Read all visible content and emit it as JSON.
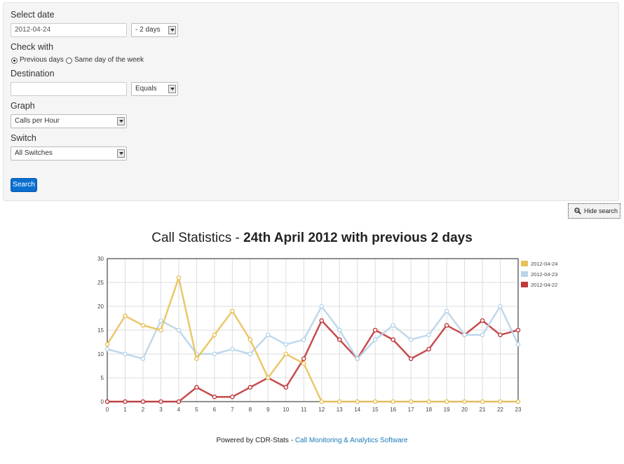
{
  "form": {
    "select_date_label": "Select date",
    "date_value": "2012-04-24",
    "days_option": "- 2 days",
    "check_with_label": "Check with",
    "radio_previous": "Previous days",
    "radio_same_day": "Same day of the week",
    "destination_label": "Destination",
    "destination_value": "",
    "equals_option": "Equals",
    "graph_label": "Graph",
    "graph_option": "Calls per Hour",
    "switch_label": "Switch",
    "switch_option": "All Switches",
    "search_button": "Search"
  },
  "hide_search": "Hide search",
  "title": {
    "prefix": "Call Statistics - ",
    "bold": "24th April 2012 with previous 2 days"
  },
  "footer": {
    "text": "Powered by CDR-Stats - ",
    "link": "Call Monitoring & Analytics Software"
  },
  "chart_data": {
    "type": "line",
    "x": [
      0,
      1,
      2,
      3,
      4,
      5,
      6,
      7,
      8,
      9,
      10,
      11,
      12,
      13,
      14,
      15,
      16,
      17,
      18,
      19,
      20,
      21,
      22,
      23
    ],
    "ylim": [
      0,
      30
    ],
    "yticks": [
      0,
      5,
      10,
      15,
      20,
      25,
      30
    ],
    "grid": true,
    "legend_position": "top-right",
    "series": [
      {
        "name": "2012-04-24",
        "color": "#e8c15a",
        "values": [
          12,
          18,
          16,
          15,
          26,
          9,
          14,
          19,
          13,
          5,
          10,
          8,
          0,
          0,
          0,
          0,
          0,
          0,
          0,
          0,
          0,
          0,
          0,
          0
        ]
      },
      {
        "name": "2012-04-23",
        "color": "#b8d4ea",
        "values": [
          11,
          10,
          9,
          17,
          15,
          10,
          10,
          11,
          10,
          14,
          12,
          13,
          20,
          15,
          9,
          13,
          16,
          13,
          14,
          19,
          14,
          14,
          20,
          12
        ]
      },
      {
        "name": "2012-04-22",
        "color": "#c0393b",
        "values": [
          0,
          0,
          0,
          0,
          0,
          3,
          1,
          1,
          3,
          5,
          3,
          9,
          17,
          13,
          9,
          15,
          13,
          9,
          11,
          16,
          14,
          17,
          14,
          15
        ]
      }
    ]
  }
}
